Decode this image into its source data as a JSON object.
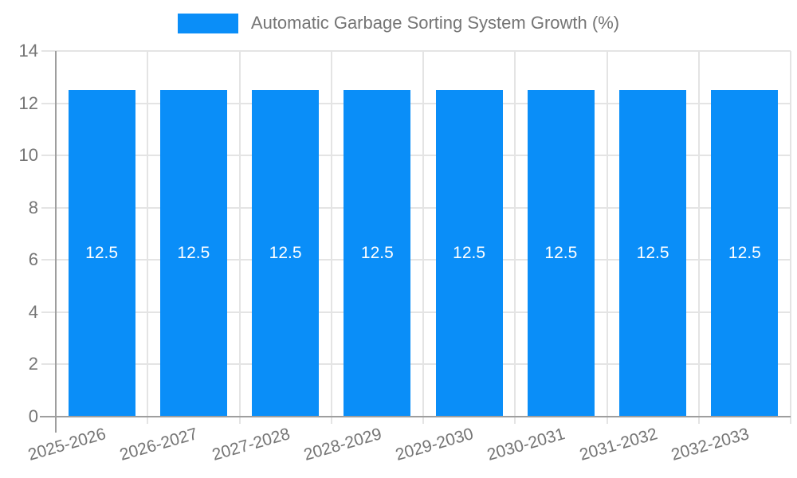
{
  "legend": {
    "label": "Automatic Garbage Sorting System Growth (%)"
  },
  "chart_data": {
    "type": "bar",
    "title": "",
    "categories": [
      "2025-2026",
      "2026-2027",
      "2027-2028",
      "2028-2029",
      "2029-2030",
      "2030-2031",
      "2031-2032",
      "2032-2033"
    ],
    "series": [
      {
        "name": "Automatic Garbage Sorting System Growth (%)",
        "values": [
          12.5,
          12.5,
          12.5,
          12.5,
          12.5,
          12.5,
          12.5,
          12.5
        ]
      }
    ],
    "value_label_decimals": 1,
    "xlabel": "",
    "ylabel": "",
    "ylim": [
      0,
      14
    ],
    "yticks": [
      0,
      2,
      4,
      6,
      8,
      10,
      12,
      14
    ],
    "grid": "on",
    "legend_position": "top",
    "x_label_rotation_deg": -16,
    "colors": {
      "bar": "#0a8ef8",
      "text": "#757575",
      "grid": "#e4e4e4",
      "axis": "#9e9e9e",
      "value_label": "#ffffff",
      "background": "#ffffff"
    }
  }
}
